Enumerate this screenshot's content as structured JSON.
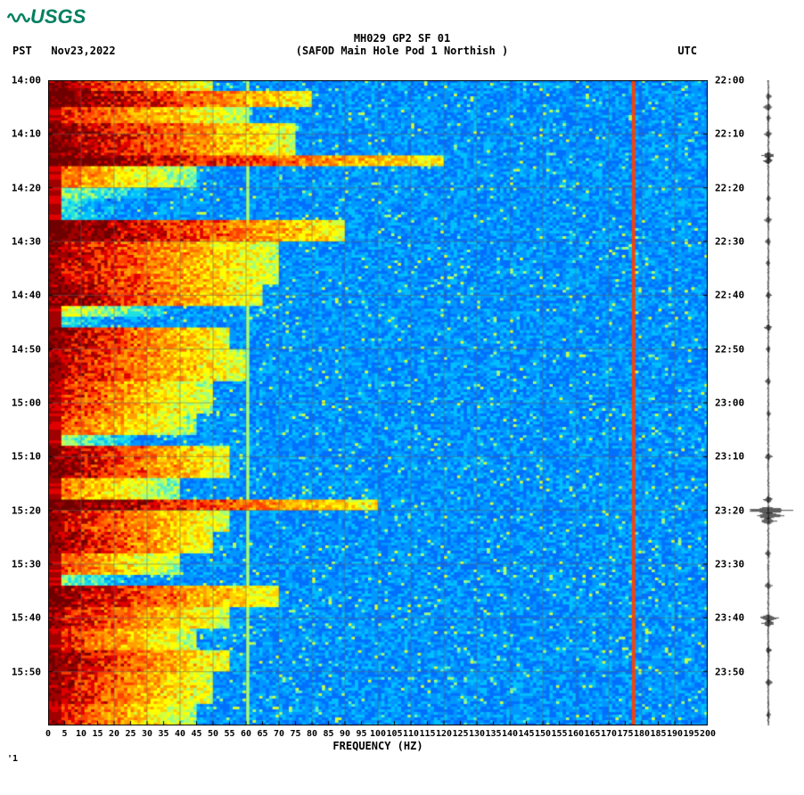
{
  "logo_text": "USGS",
  "title_line1": "MH029 GP2 SF 01",
  "title_line2": "(SAFOD Main Hole Pod 1 Northish )",
  "left_tz": "PST",
  "date": "Nov23,2022",
  "right_tz": "UTC",
  "xlabel": "FREQUENCY (HZ)",
  "spectrogram": {
    "type": "spectrogram",
    "x_range": [
      0,
      200
    ],
    "x_ticks": [
      0,
      5,
      10,
      15,
      20,
      25,
      30,
      35,
      40,
      45,
      50,
      55,
      60,
      65,
      70,
      75,
      80,
      85,
      90,
      95,
      100,
      105,
      110,
      115,
      120,
      125,
      130,
      135,
      140,
      145,
      150,
      155,
      160,
      165,
      170,
      175,
      180,
      185,
      190,
      195,
      200
    ],
    "y_range_minutes": [
      0,
      120
    ],
    "y_ticks_left": [
      {
        "pos": 0,
        "label": "14:00"
      },
      {
        "pos": 10,
        "label": "14:10"
      },
      {
        "pos": 20,
        "label": "14:20"
      },
      {
        "pos": 30,
        "label": "14:30"
      },
      {
        "pos": 40,
        "label": "14:40"
      },
      {
        "pos": 50,
        "label": "14:50"
      },
      {
        "pos": 60,
        "label": "15:00"
      },
      {
        "pos": 70,
        "label": "15:10"
      },
      {
        "pos": 80,
        "label": "15:20"
      },
      {
        "pos": 90,
        "label": "15:30"
      },
      {
        "pos": 100,
        "label": "15:40"
      },
      {
        "pos": 110,
        "label": "15:50"
      }
    ],
    "y_ticks_right": [
      {
        "pos": 0,
        "label": "22:00"
      },
      {
        "pos": 10,
        "label": "22:10"
      },
      {
        "pos": 20,
        "label": "22:20"
      },
      {
        "pos": 30,
        "label": "22:30"
      },
      {
        "pos": 40,
        "label": "22:40"
      },
      {
        "pos": 50,
        "label": "22:50"
      },
      {
        "pos": 60,
        "label": "23:00"
      },
      {
        "pos": 70,
        "label": "23:10"
      },
      {
        "pos": 80,
        "label": "23:20"
      },
      {
        "pos": 90,
        "label": "23:30"
      },
      {
        "pos": 100,
        "label": "23:40"
      },
      {
        "pos": 110,
        "label": "23:50"
      }
    ],
    "colormap": [
      "#00008b",
      "#0020b0",
      "#0048d8",
      "#0070ff",
      "#0098ff",
      "#00c0ff",
      "#20e0e0",
      "#60f0c0",
      "#a0ff80",
      "#d0ff40",
      "#ffff00",
      "#ffd000",
      "#ffa000",
      "#ff7000",
      "#ff4000",
      "#e00000",
      "#a00000",
      "#700000"
    ],
    "background_color": "#ffffff",
    "grid_color": "#606060",
    "grid_freqs": [
      10,
      20,
      30,
      40,
      50,
      60,
      70,
      80,
      90,
      100,
      110,
      120,
      130,
      140,
      150,
      160,
      170,
      180,
      190
    ],
    "narrowband_lines": [
      {
        "freq": 60,
        "color": "#404040"
      },
      {
        "freq": 177,
        "color": "#a00000"
      }
    ],
    "burst_rows": [
      {
        "start": 0,
        "end": 2,
        "intensity": 0.9,
        "extent": 50
      },
      {
        "start": 2,
        "end": 5,
        "intensity": 0.95,
        "extent": 80
      },
      {
        "start": 5,
        "end": 8,
        "intensity": 0.8,
        "extent": 60
      },
      {
        "start": 8,
        "end": 14,
        "intensity": 0.9,
        "extent": 75
      },
      {
        "start": 14,
        "end": 16,
        "intensity": 0.95,
        "extent": 120
      },
      {
        "start": 16,
        "end": 20,
        "intensity": 0.7,
        "extent": 45
      },
      {
        "start": 20,
        "end": 22,
        "intensity": 0.4,
        "extent": 30
      },
      {
        "start": 22,
        "end": 26,
        "intensity": 0.3,
        "extent": 20
      },
      {
        "start": 26,
        "end": 30,
        "intensity": 0.95,
        "extent": 90
      },
      {
        "start": 30,
        "end": 38,
        "intensity": 0.85,
        "extent": 70
      },
      {
        "start": 38,
        "end": 42,
        "intensity": 0.9,
        "extent": 65
      },
      {
        "start": 42,
        "end": 44,
        "intensity": 0.5,
        "extent": 35
      },
      {
        "start": 44,
        "end": 46,
        "intensity": 0.3,
        "extent": 18
      },
      {
        "start": 46,
        "end": 50,
        "intensity": 0.9,
        "extent": 55
      },
      {
        "start": 50,
        "end": 56,
        "intensity": 0.85,
        "extent": 60
      },
      {
        "start": 56,
        "end": 62,
        "intensity": 0.8,
        "extent": 50
      },
      {
        "start": 62,
        "end": 66,
        "intensity": 0.75,
        "extent": 45
      },
      {
        "start": 66,
        "end": 68,
        "intensity": 0.4,
        "extent": 25
      },
      {
        "start": 68,
        "end": 74,
        "intensity": 0.9,
        "extent": 55
      },
      {
        "start": 74,
        "end": 78,
        "intensity": 0.7,
        "extent": 40
      },
      {
        "start": 78,
        "end": 80,
        "intensity": 0.95,
        "extent": 100
      },
      {
        "start": 80,
        "end": 84,
        "intensity": 0.85,
        "extent": 55
      },
      {
        "start": 84,
        "end": 88,
        "intensity": 0.9,
        "extent": 50
      },
      {
        "start": 88,
        "end": 92,
        "intensity": 0.75,
        "extent": 40
      },
      {
        "start": 92,
        "end": 94,
        "intensity": 0.4,
        "extent": 22
      },
      {
        "start": 94,
        "end": 98,
        "intensity": 0.9,
        "extent": 70
      },
      {
        "start": 98,
        "end": 102,
        "intensity": 0.85,
        "extent": 55
      },
      {
        "start": 102,
        "end": 106,
        "intensity": 0.8,
        "extent": 45
      },
      {
        "start": 106,
        "end": 110,
        "intensity": 0.9,
        "extent": 55
      },
      {
        "start": 110,
        "end": 116,
        "intensity": 0.85,
        "extent": 50
      },
      {
        "start": 116,
        "end": 120,
        "intensity": 0.8,
        "extent": 45
      }
    ]
  },
  "waveform": {
    "color": "#000000",
    "baseline_x": 30,
    "events": [
      {
        "t": 3,
        "amp": 4
      },
      {
        "t": 5,
        "amp": 6
      },
      {
        "t": 7,
        "amp": 3
      },
      {
        "t": 10,
        "amp": 5
      },
      {
        "t": 14,
        "amp": 8
      },
      {
        "t": 15,
        "amp": 6
      },
      {
        "t": 22,
        "amp": 3
      },
      {
        "t": 26,
        "amp": 5
      },
      {
        "t": 30,
        "amp": 4
      },
      {
        "t": 34,
        "amp": 3
      },
      {
        "t": 40,
        "amp": 4
      },
      {
        "t": 46,
        "amp": 5
      },
      {
        "t": 50,
        "amp": 3
      },
      {
        "t": 56,
        "amp": 4
      },
      {
        "t": 62,
        "amp": 3
      },
      {
        "t": 70,
        "amp": 5
      },
      {
        "t": 78,
        "amp": 6
      },
      {
        "t": 80,
        "amp": 28
      },
      {
        "t": 81,
        "amp": 18
      },
      {
        "t": 82,
        "amp": 10
      },
      {
        "t": 88,
        "amp": 4
      },
      {
        "t": 94,
        "amp": 5
      },
      {
        "t": 100,
        "amp": 12
      },
      {
        "t": 101,
        "amp": 8
      },
      {
        "t": 106,
        "amp": 4
      },
      {
        "t": 112,
        "amp": 5
      },
      {
        "t": 118,
        "amp": 3
      }
    ]
  },
  "corner_mark": "'1",
  "font": {
    "title_size": 12,
    "tick_size": 11,
    "xlabel_size": 12
  }
}
